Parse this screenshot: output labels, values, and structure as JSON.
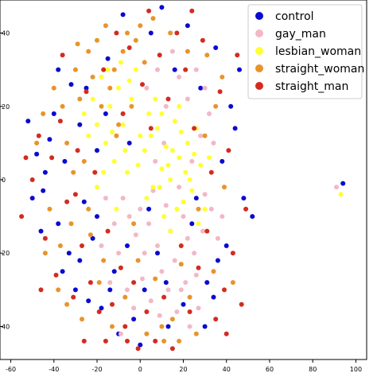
{
  "chart_data": {
    "type": "scatter",
    "xlim": [
      -65,
      105
    ],
    "ylim": [
      -49,
      49
    ],
    "xticks": [
      -60,
      -40,
      -20,
      0,
      20,
      40,
      60,
      80,
      100
    ],
    "yticks": [
      -40,
      -20,
      0,
      20,
      40
    ],
    "grid": false,
    "legend_position": "top-right",
    "series": [
      {
        "name": "control",
        "color": "#0a0ad0",
        "points": [
          [
            -52,
            16
          ],
          [
            -48,
            7
          ],
          [
            -45,
            -3
          ],
          [
            -42,
            11
          ],
          [
            -40,
            18
          ],
          [
            -38,
            -12
          ],
          [
            -35,
            5
          ],
          [
            -33,
            -20
          ],
          [
            -30,
            -30
          ],
          [
            -28,
            15
          ],
          [
            -26,
            -6
          ],
          [
            -25,
            25
          ],
          [
            -22,
            -16
          ],
          [
            -20,
            8
          ],
          [
            -18,
            -35
          ],
          [
            -15,
            33
          ],
          [
            -12,
            -25
          ],
          [
            -10,
            -42
          ],
          [
            -8,
            45
          ],
          [
            -5,
            10
          ],
          [
            -3,
            -38
          ],
          [
            0,
            -45
          ],
          [
            2,
            -30
          ],
          [
            5,
            40
          ],
          [
            8,
            -20
          ],
          [
            10,
            47
          ],
          [
            13,
            -40
          ],
          [
            16,
            30
          ],
          [
            20,
            -34
          ],
          [
            24,
            -12
          ],
          [
            28,
            25
          ],
          [
            31,
            -28
          ],
          [
            35,
            36
          ],
          [
            38,
            5
          ],
          [
            40,
            -18
          ],
          [
            44,
            14
          ],
          [
            48,
            -5
          ],
          [
            52,
            -10
          ],
          [
            -50,
            -5
          ],
          [
            -46,
            -14
          ],
          [
            -36,
            -25
          ],
          [
            -32,
            26
          ],
          [
            -24,
            -33
          ],
          [
            -14,
            -30
          ],
          [
            -6,
            -18
          ],
          [
            4,
            -8
          ],
          [
            12,
            -28
          ],
          [
            22,
            42
          ],
          [
            30,
            -40
          ],
          [
            36,
            -22
          ],
          [
            42,
            20
          ],
          [
            46,
            30
          ],
          [
            -44,
            2
          ],
          [
            -38,
            30
          ],
          [
            -20,
            -10
          ],
          [
            94,
            -1
          ],
          [
            -28,
            -22
          ],
          [
            -16,
            18
          ],
          [
            26,
            -5
          ],
          [
            34,
            -32
          ]
        ]
      },
      {
        "name": "gay_man",
        "color": "#f2b8c6",
        "points": [
          [
            -8,
            -5
          ],
          [
            -5,
            -10
          ],
          [
            -2,
            -15
          ],
          [
            0,
            -8
          ],
          [
            2,
            -20
          ],
          [
            4,
            -12
          ],
          [
            6,
            -3
          ],
          [
            8,
            -18
          ],
          [
            10,
            -25
          ],
          [
            12,
            -7
          ],
          [
            14,
            -14
          ],
          [
            16,
            -22
          ],
          [
            18,
            -2
          ],
          [
            20,
            -10
          ],
          [
            22,
            -16
          ],
          [
            24,
            5
          ],
          [
            26,
            -26
          ],
          [
            28,
            12
          ],
          [
            30,
            -4
          ],
          [
            32,
            18
          ],
          [
            -12,
            -12
          ],
          [
            -14,
            -28
          ],
          [
            -10,
            -20
          ],
          [
            -6,
            -30
          ],
          [
            -3,
            -35
          ],
          [
            1,
            -27
          ],
          [
            5,
            -33
          ],
          [
            9,
            -37
          ],
          [
            13,
            -30
          ],
          [
            17,
            -36
          ],
          [
            21,
            -28
          ],
          [
            25,
            -20
          ],
          [
            29,
            -14
          ],
          [
            33,
            -8
          ],
          [
            36,
            -16
          ],
          [
            3,
            25
          ],
          [
            8,
            30
          ],
          [
            12,
            20
          ],
          [
            15,
            35
          ],
          [
            18,
            28
          ],
          [
            22,
            22
          ],
          [
            26,
            30
          ],
          [
            30,
            25
          ],
          [
            34,
            10
          ],
          [
            38,
            -10
          ],
          [
            -16,
            -5
          ],
          [
            -18,
            -18
          ],
          [
            7,
            5
          ],
          [
            11,
            10
          ],
          [
            19,
            -30
          ],
          [
            23,
            -40
          ],
          [
            27,
            -35
          ],
          [
            -9,
            -42
          ],
          [
            91,
            -2
          ]
        ]
      },
      {
        "name": "lesbian_woman",
        "color": "#ffff33",
        "points": [
          [
            -22,
            22
          ],
          [
            -20,
            15
          ],
          [
            -18,
            28
          ],
          [
            -16,
            10
          ],
          [
            -14,
            20
          ],
          [
            -12,
            5
          ],
          [
            -10,
            25
          ],
          [
            -8,
            15
          ],
          [
            -6,
            2
          ],
          [
            -4,
            22
          ],
          [
            -2,
            30
          ],
          [
            0,
            12
          ],
          [
            2,
            8
          ],
          [
            4,
            18
          ],
          [
            6,
            -2
          ],
          [
            8,
            14
          ],
          [
            10,
            3
          ],
          [
            12,
            9
          ],
          [
            14,
            0
          ],
          [
            16,
            16
          ],
          [
            18,
            6
          ],
          [
            20,
            -6
          ],
          [
            22,
            10
          ],
          [
            24,
            -3
          ],
          [
            26,
            14
          ],
          [
            28,
            4
          ],
          [
            30,
            -8
          ],
          [
            32,
            6
          ],
          [
            -24,
            12
          ],
          [
            -26,
            18
          ],
          [
            -20,
            -2
          ],
          [
            -17,
            2
          ],
          [
            -13,
            13
          ],
          [
            -9,
            32
          ],
          [
            -5,
            27
          ],
          [
            -1,
            4
          ],
          [
            3,
            -5
          ],
          [
            7,
            22
          ],
          [
            11,
            -10
          ],
          [
            15,
            8
          ],
          [
            19,
            13
          ],
          [
            23,
            0
          ],
          [
            27,
            -12
          ],
          [
            14,
            -14
          ],
          [
            17,
            -8
          ],
          [
            21,
            2
          ],
          [
            25,
            7
          ],
          [
            10,
            18
          ],
          [
            -15,
            30
          ],
          [
            -11,
            -8
          ],
          [
            93,
            -4
          ],
          [
            -7,
            8
          ],
          [
            5,
            12
          ],
          [
            9,
            -2
          ],
          [
            13,
            4
          ],
          [
            18,
            20
          ]
        ]
      },
      {
        "name": "straight_woman",
        "color": "#e8942a",
        "points": [
          [
            -40,
            25
          ],
          [
            -36,
            20
          ],
          [
            -34,
            10
          ],
          [
            -30,
            30
          ],
          [
            -28,
            22
          ],
          [
            -26,
            5
          ],
          [
            -24,
            35
          ],
          [
            -22,
            28
          ],
          [
            -20,
            38
          ],
          [
            -18,
            20
          ],
          [
            -16,
            42
          ],
          [
            -14,
            25
          ],
          [
            -12,
            30
          ],
          [
            -10,
            15
          ],
          [
            -8,
            35
          ],
          [
            -6,
            40
          ],
          [
            -4,
            20
          ],
          [
            -2,
            38
          ],
          [
            0,
            42
          ],
          [
            2,
            32
          ],
          [
            -42,
            -8
          ],
          [
            -38,
            -30
          ],
          [
            -32,
            -12
          ],
          [
            -27,
            -38
          ],
          [
            -19,
            -28
          ],
          [
            -13,
            -40
          ],
          [
            -7,
            -32
          ],
          [
            -1,
            -22
          ],
          [
            3,
            -42
          ],
          [
            7,
            -27
          ],
          [
            11,
            -44
          ],
          [
            15,
            -38
          ],
          [
            19,
            -23
          ],
          [
            23,
            -32
          ],
          [
            27,
            -8
          ],
          [
            31,
            34
          ],
          [
            35,
            20
          ],
          [
            39,
            -2
          ],
          [
            43,
            -28
          ],
          [
            -45,
            18
          ],
          [
            -31,
            2
          ],
          [
            -23,
            -15
          ],
          [
            -17,
            -22
          ],
          [
            -11,
            12
          ],
          [
            -3,
            -12
          ],
          [
            6,
            44
          ],
          [
            14,
            40
          ],
          [
            22,
            35
          ],
          [
            30,
            12
          ],
          [
            38,
            28
          ],
          [
            -29,
            37
          ],
          [
            -37,
            -18
          ],
          [
            -48,
            10
          ],
          [
            -44,
            -20
          ],
          [
            -34,
            -34
          ],
          [
            -24,
            -8
          ],
          [
            10,
            -40
          ],
          [
            18,
            -44
          ],
          [
            26,
            -42
          ],
          [
            34,
            -25
          ]
        ]
      },
      {
        "name": "straight_man",
        "color": "#d42b20",
        "points": [
          [
            -55,
            -10
          ],
          [
            -50,
            0
          ],
          [
            -47,
            12
          ],
          [
            -44,
            -16
          ],
          [
            -41,
            6
          ],
          [
            -39,
            -26
          ],
          [
            -37,
            16
          ],
          [
            -34,
            -6
          ],
          [
            -31,
            -32
          ],
          [
            -29,
            8
          ],
          [
            -27,
            -18
          ],
          [
            -25,
            24
          ],
          [
            -23,
            -28
          ],
          [
            -21,
            2
          ],
          [
            -19,
            -36
          ],
          [
            -17,
            30
          ],
          [
            -15,
            -14
          ],
          [
            -13,
            -34
          ],
          [
            -11,
            40
          ],
          [
            -9,
            -24
          ],
          [
            -7,
            -40
          ],
          [
            -5,
            36
          ],
          [
            -3,
            -28
          ],
          [
            -1,
            -46
          ],
          [
            1,
            26
          ],
          [
            3,
            -36
          ],
          [
            5,
            14
          ],
          [
            7,
            -44
          ],
          [
            9,
            34
          ],
          [
            11,
            -32
          ],
          [
            13,
            22
          ],
          [
            15,
            -46
          ],
          [
            17,
            40
          ],
          [
            19,
            -18
          ],
          [
            21,
            30
          ],
          [
            23,
            -36
          ],
          [
            25,
            14
          ],
          [
            27,
            -24
          ],
          [
            29,
            38
          ],
          [
            31,
            -14
          ],
          [
            33,
            2
          ],
          [
            35,
            -38
          ],
          [
            37,
            24
          ],
          [
            39,
            -30
          ],
          [
            41,
            8
          ],
          [
            43,
            -20
          ],
          [
            45,
            34
          ],
          [
            47,
            -34
          ],
          [
            49,
            -8
          ],
          [
            -53,
            6
          ],
          [
            -46,
            -30
          ],
          [
            -36,
            34
          ],
          [
            -26,
            -44
          ],
          [
            -16,
            -44
          ],
          [
            -6,
            -44
          ],
          [
            4,
            46
          ],
          [
            24,
            46
          ],
          [
            40,
            -42
          ],
          [
            -30,
            -4
          ],
          [
            -8,
            18
          ]
        ]
      }
    ]
  }
}
